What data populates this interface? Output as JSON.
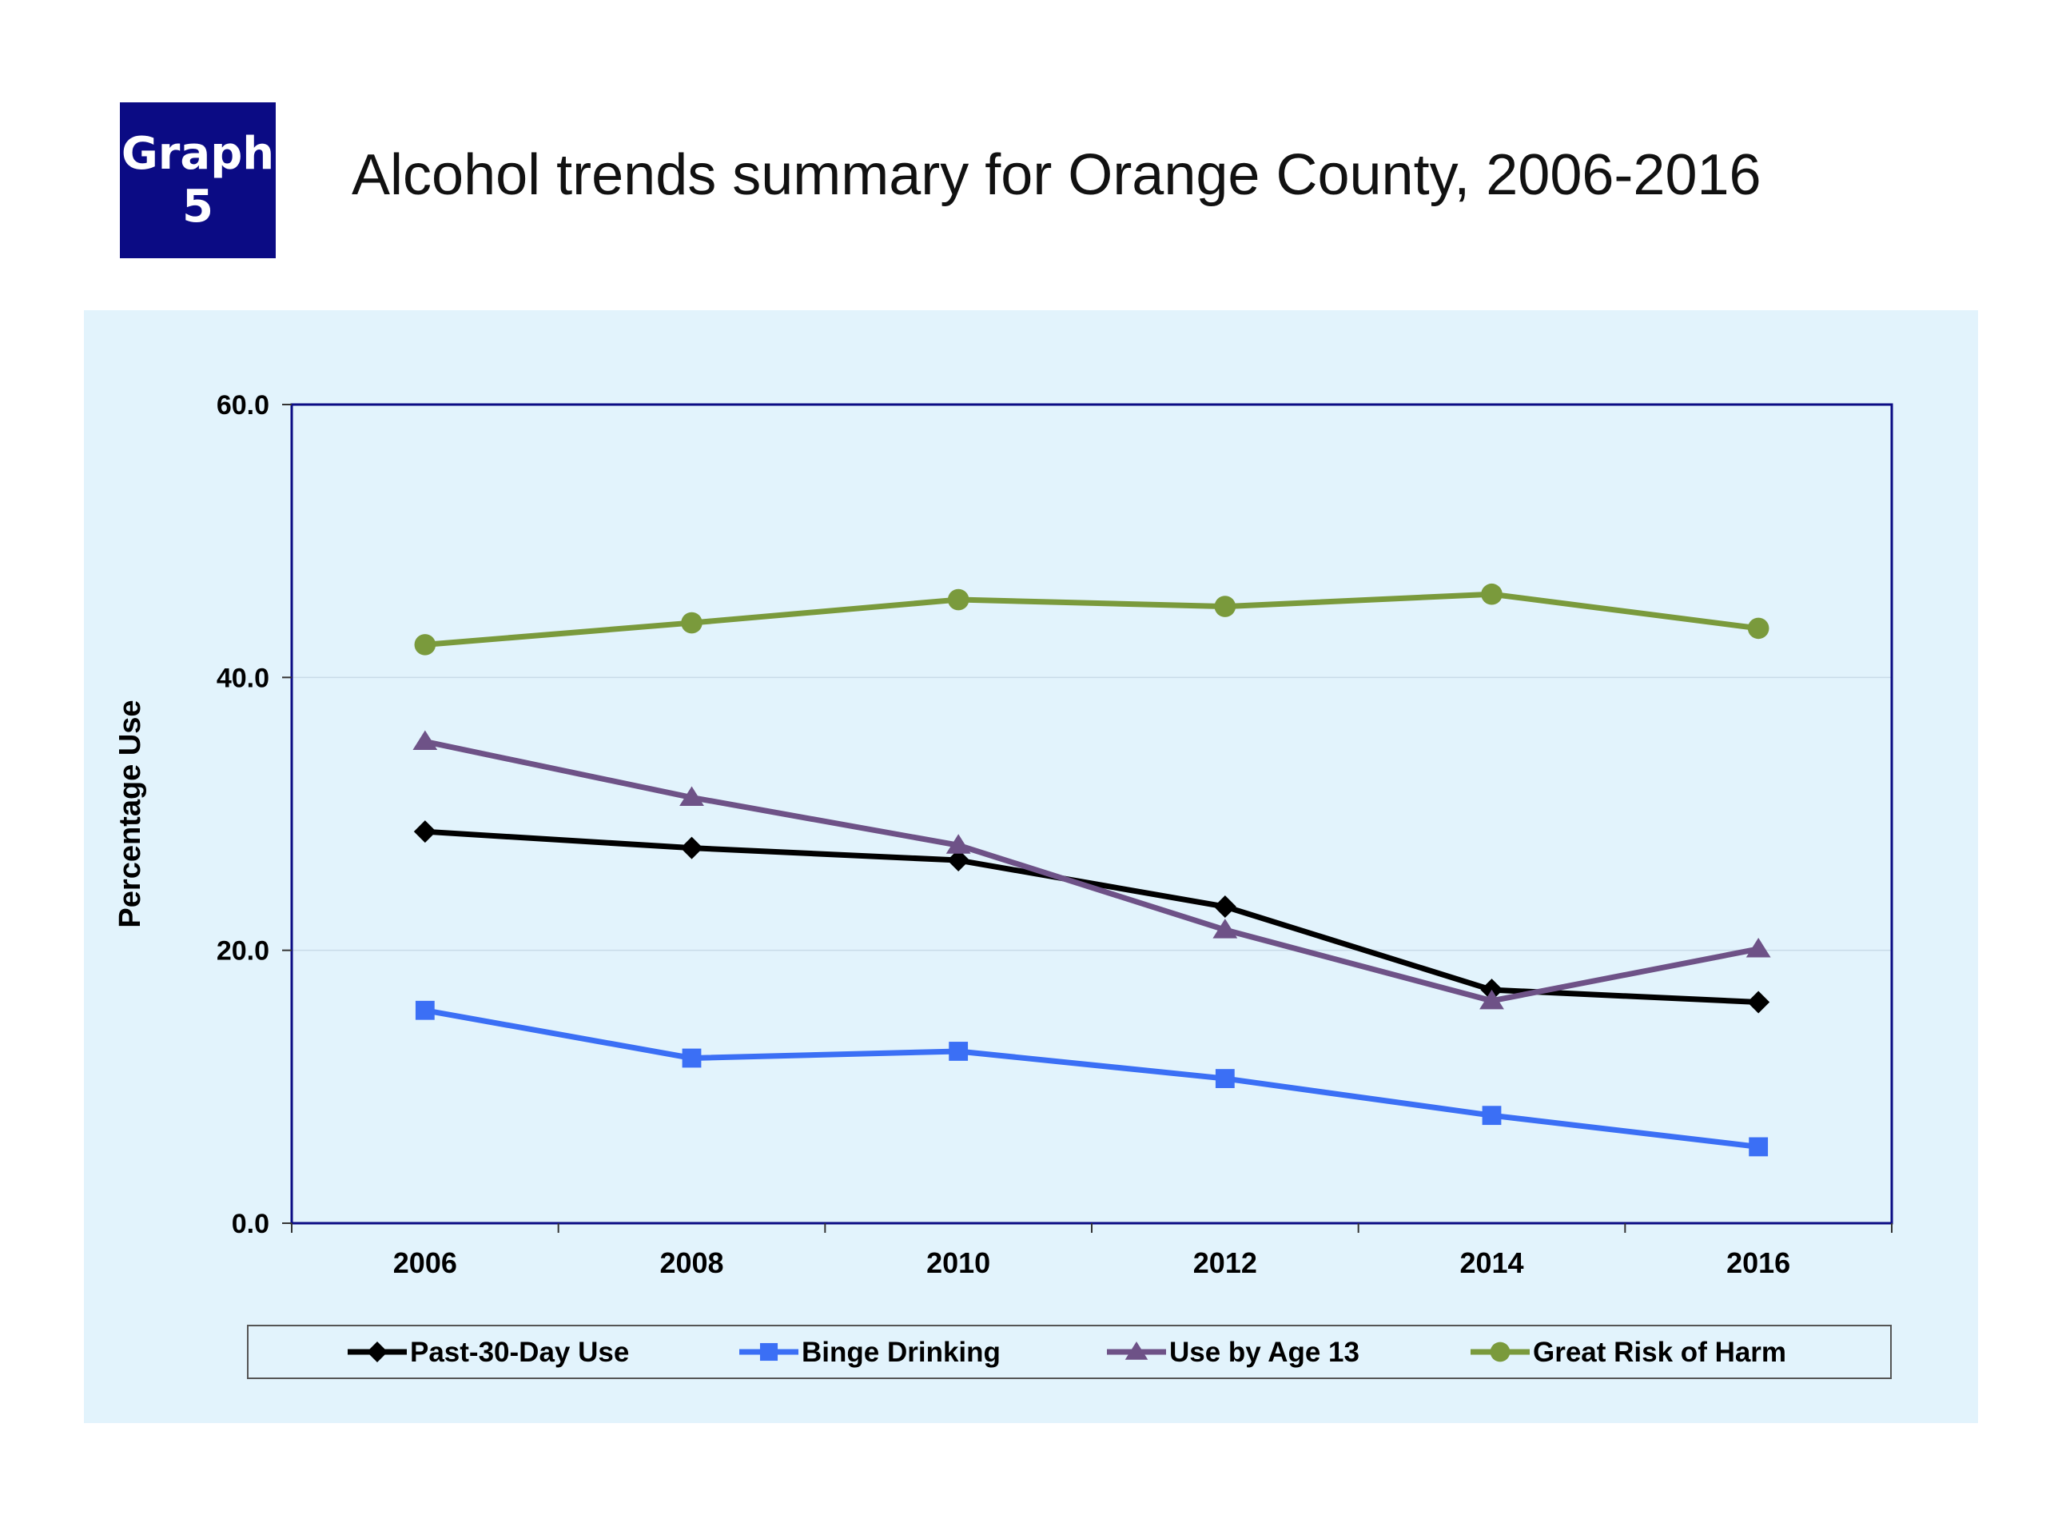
{
  "badge": {
    "line1": "Graph",
    "line2": "5"
  },
  "title": "Alcohol trends summary for Orange County, 2006-2016",
  "colors": {
    "panel_bg": "#e2f3fc",
    "plot_border": "#0b0b84",
    "gridline": "#c9dbe8",
    "badge_bg": "#0b0b84"
  },
  "chart_data": {
    "type": "line",
    "title": "Alcohol trends summary for Orange County, 2006-2016",
    "xlabel": "",
    "ylabel": "Percentage Use",
    "x": [
      "2006",
      "2008",
      "2010",
      "2012",
      "2014",
      "2016"
    ],
    "ylim": [
      0,
      60
    ],
    "yticks": [
      "0.0",
      "20.0",
      "40.0",
      "60.0"
    ],
    "ytick_values": [
      0,
      20,
      40,
      60
    ],
    "grid": true,
    "legend_position": "bottom",
    "series": [
      {
        "name": "Past-30-Day Use",
        "color": "#000000",
        "marker": "diamond",
        "values": [
          28.7,
          27.5,
          26.6,
          23.2,
          17.1,
          16.2
        ]
      },
      {
        "name": "Binge Drinking",
        "color": "#3b6ff5",
        "marker": "square",
        "values": [
          15.6,
          12.1,
          12.6,
          10.6,
          7.9,
          5.6
        ]
      },
      {
        "name": "Use by Age 13",
        "color": "#6e5287",
        "marker": "triangle",
        "values": [
          35.3,
          31.2,
          27.7,
          21.5,
          16.3,
          20.1
        ]
      },
      {
        "name": "Great Risk of Harm",
        "color": "#7a9a3c",
        "marker": "circle",
        "values": [
          42.4,
          44.0,
          45.7,
          45.2,
          46.1,
          43.6
        ]
      }
    ]
  }
}
